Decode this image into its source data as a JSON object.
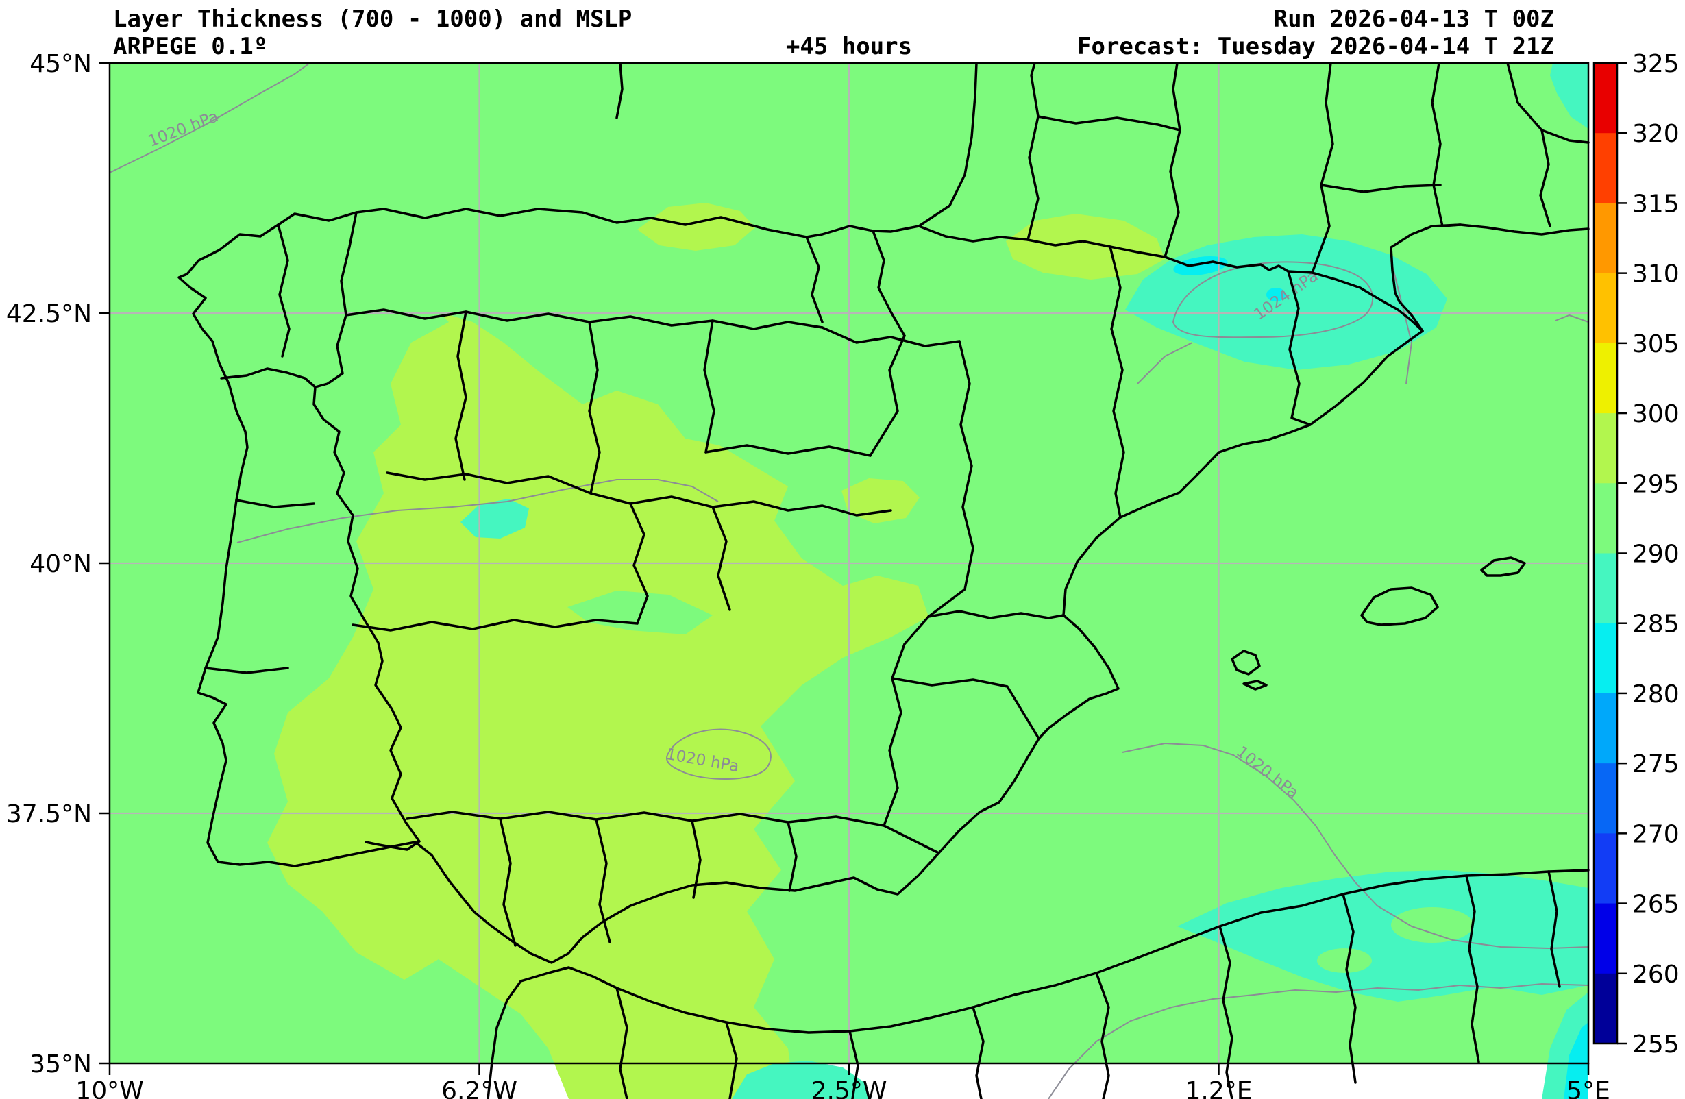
{
  "header": {
    "title": "Layer Thickness (700 - 1000) and MSLP",
    "model": "ARPEGE 0.1º",
    "lead_time": "+45 hours",
    "run": "Run 2026-04-13 T 00Z",
    "forecast": "Forecast: Tuesday 2026-04-14 T 21Z"
  },
  "map": {
    "x_tick_labels": [
      "10°W",
      "6.2°W",
      "2.5°W",
      "1.2°E",
      "5°E"
    ],
    "y_tick_labels": [
      "45°N",
      "42.5°N",
      "40°N",
      "37.5°N",
      "35°N"
    ],
    "isobar_labels": [
      {
        "text": "1020 hPa"
      },
      {
        "text": "1020 hPa"
      },
      {
        "text": "1020 hPa"
      },
      {
        "text": "1024 hPa"
      }
    ]
  },
  "colorbar": {
    "tick_labels": [
      "325",
      "320",
      "315",
      "310",
      "305",
      "300",
      "295",
      "290",
      "285",
      "280",
      "275",
      "270",
      "265",
      "260",
      "255"
    ],
    "segment_colors_top_to_bottom": [
      "#e80000",
      "#ff4000",
      "#ff9800",
      "#ffc100",
      "#eef000",
      "#b2f64e",
      "#7dfa7d",
      "#45f6c0",
      "#06eef0",
      "#00a8fa",
      "#0767f5",
      "#123df5",
      "#0000e8",
      "#000099"
    ]
  },
  "chart_data": {
    "type": "heatmap",
    "title": "Layer Thickness (700 - 1000) and MSLP",
    "model": "ARPEGE 0.1º",
    "run": "2026-04-13 T 00Z",
    "forecast_valid": "Tuesday 2026-04-14 T 21Z",
    "lead_hours": 45,
    "region": "Iberian Peninsula, Balearics, southern France, northern Africa",
    "colorbar_title": "Layer thickness (dam)",
    "colorbar_range": [
      255,
      325
    ],
    "colorbar_step": 5,
    "lon_ticks": [
      "10°W",
      "6.2°W",
      "2.5°W",
      "1.2°E",
      "5°E"
    ],
    "lat_ticks": [
      "35°N",
      "37.5°N",
      "40°N",
      "42.5°N",
      "45°N"
    ],
    "isobars_hpa": [
      1020,
      1024
    ],
    "dominant_thickness_band": "290-295",
    "notable_features": [
      "295-300 band over west-central Iberia and Ebro valley",
      "285-290 band over Pyrenees with small 280-285 cores",
      "285-290 band over SE Mediterranean / Algerian coast",
      "1020 hPa isobars over Atlantic, central Iberia and Alboran area",
      "1024 hPa high centred near the Pyrenees"
    ]
  }
}
